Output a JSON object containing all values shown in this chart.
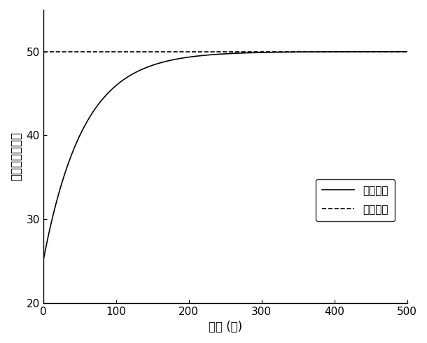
{
  "title": "",
  "xlabel": "时间 (秒)",
  "ylabel": "温度（摄氏度）",
  "xlim": [
    0,
    500
  ],
  "ylim": [
    20,
    55
  ],
  "yticks": [
    20,
    30,
    40,
    50
  ],
  "xticks": [
    0,
    100,
    200,
    300,
    400,
    500
  ],
  "ref_temp": 50,
  "init_temp": 25,
  "time_constant": 55,
  "legend_actual": "实际温度",
  "legend_ref": "参考温度",
  "line_color": "#000000",
  "background_color": "#ffffff",
  "linewidth": 1.2,
  "fontsize_label": 12,
  "fontsize_tick": 11,
  "fontsize_legend": 11
}
